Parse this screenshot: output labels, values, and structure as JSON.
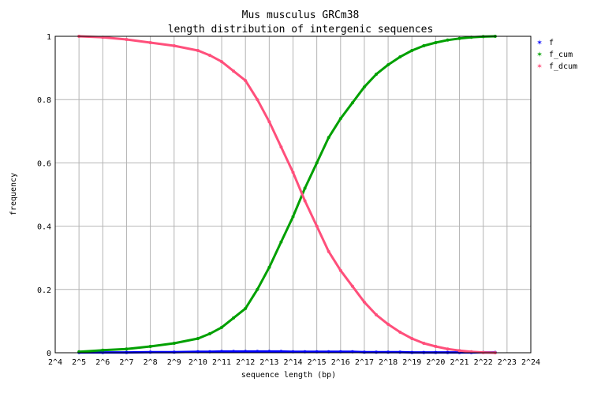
{
  "chart_data": {
    "type": "line",
    "title": "Mus musculus GRCm38",
    "subtitle": "length distribution of intergenic sequences",
    "xlabel": "sequence length (bp)",
    "ylabel": "frequency",
    "x_scale": "log2",
    "xlim": [
      4,
      24
    ],
    "ylim": [
      0,
      1
    ],
    "x_ticks": [
      "2^4",
      "2^5",
      "2^6",
      "2^7",
      "2^8",
      "2^9",
      "2^10",
      "2^11",
      "2^12",
      "2^13",
      "2^14",
      "2^15",
      "2^16",
      "2^17",
      "2^18",
      "2^19",
      "2^20",
      "2^21",
      "2^22",
      "2^23",
      "2^24"
    ],
    "y_ticks": [
      "0",
      "0.2",
      "0.4",
      "0.6",
      "0.8",
      "1"
    ],
    "grid": true,
    "legend_position": "right",
    "x_log2": [
      5,
      6,
      7,
      8,
      9,
      10,
      10.5,
      11,
      11.5,
      12,
      12.5,
      13,
      13.5,
      14,
      14.5,
      15,
      15.5,
      16,
      16.5,
      17,
      17.5,
      18,
      18.5,
      19,
      19.5,
      20,
      20.5,
      21,
      21.5,
      22,
      22.5
    ],
    "series": [
      {
        "name": "f",
        "color": "#0000ff",
        "values": [
          0.001,
          0.001,
          0.001,
          0.002,
          0.002,
          0.003,
          0.003,
          0.004,
          0.004,
          0.004,
          0.004,
          0.004,
          0.004,
          0.003,
          0.003,
          0.003,
          0.003,
          0.003,
          0.003,
          0.002,
          0.002,
          0.002,
          0.002,
          0.001,
          0.001,
          0.001,
          0.001,
          0.001,
          0.001,
          0.001,
          0.001
        ]
      },
      {
        "name": "f_cum",
        "color": "#00a000",
        "values": [
          0.003,
          0.008,
          0.012,
          0.02,
          0.03,
          0.045,
          0.06,
          0.08,
          0.11,
          0.14,
          0.2,
          0.27,
          0.35,
          0.43,
          0.52,
          0.6,
          0.68,
          0.74,
          0.79,
          0.84,
          0.88,
          0.91,
          0.935,
          0.955,
          0.97,
          0.98,
          0.988,
          0.993,
          0.997,
          0.999,
          1.0
        ]
      },
      {
        "name": "f_dcum",
        "color": "#ff4f7b",
        "values": [
          1.0,
          0.997,
          0.99,
          0.98,
          0.97,
          0.955,
          0.94,
          0.92,
          0.89,
          0.86,
          0.8,
          0.73,
          0.65,
          0.57,
          0.48,
          0.4,
          0.32,
          0.26,
          0.21,
          0.16,
          0.12,
          0.09,
          0.065,
          0.045,
          0.03,
          0.02,
          0.012,
          0.007,
          0.003,
          0.001,
          0.0
        ]
      }
    ]
  }
}
